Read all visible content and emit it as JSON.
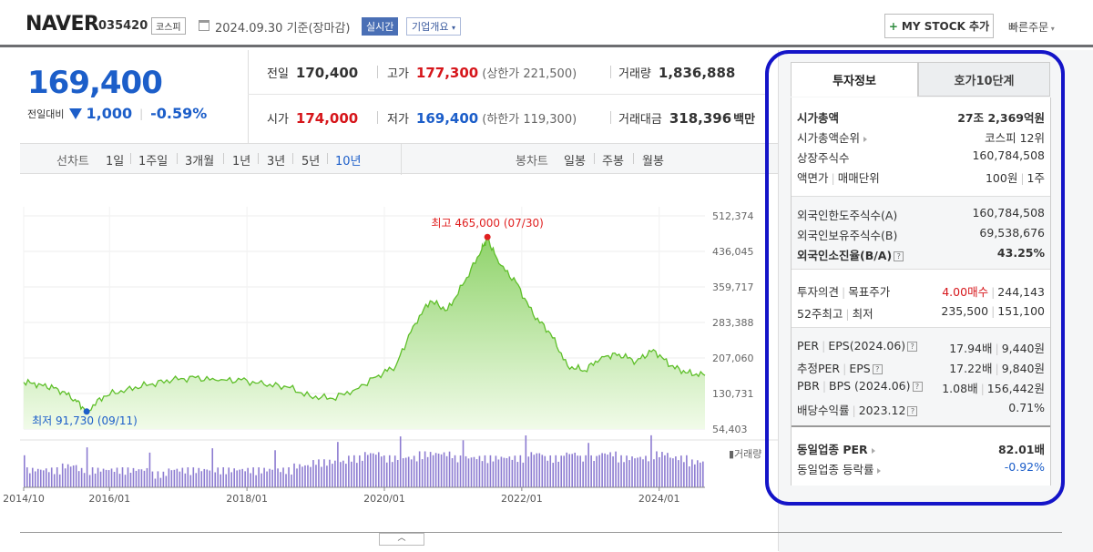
{
  "header": {
    "name": "NAVER",
    "code": "035420",
    "market": "코스피",
    "date": "2024.09.30 기준(장마감)",
    "realtime": "실시간",
    "company_overview": "기업개요",
    "mystock": "MY STOCK 추가",
    "quick_order": "빠른주문"
  },
  "price": {
    "current": "169,400",
    "diff_label": "전일대비",
    "diff_value": "1,000",
    "diff_pct": "-0.59%"
  },
  "quote": {
    "prev_label": "전일",
    "prev": "170,400",
    "high_label": "고가",
    "high": "177,300",
    "high_sub": "(상한가 221,500)",
    "volume_label": "거래량",
    "volume": "1,836,888",
    "open_label": "시가",
    "open": "174,000",
    "low_label": "저가",
    "low": "169,400",
    "low_sub": "(하한가 119,300)",
    "amount_label": "거래대금",
    "amount": "318,396",
    "amount_unit": "백만"
  },
  "periods": {
    "line_label": "선차트",
    "line_items": [
      "1일",
      "1주일",
      "3개월",
      "1년",
      "3년",
      "5년",
      "10년"
    ],
    "selected": "10년",
    "candle_label": "봉차트",
    "candle_items": [
      "일봉",
      "주봉",
      "월봉"
    ]
  },
  "chart_data": {
    "type": "area",
    "title": "",
    "x_ticks": [
      "2014/10",
      "2016/01",
      "2018/01",
      "2020/01",
      "2022/01",
      "2024/01"
    ],
    "y_ticks": [
      "512,374",
      "436,045",
      "359,717",
      "283,388",
      "207,060",
      "130,731",
      "54,403"
    ],
    "ylim": [
      54403,
      512374
    ],
    "max_label": "최고 465,000 (07/30)",
    "min_label": "최저 91,730 (09/11)",
    "volume_label": "거래량",
    "series": [
      {
        "x": [
          "2014/10",
          "2015/01",
          "2015/04",
          "2015/07",
          "2015/09",
          "2015/12",
          "2016/04",
          "2016/08",
          "2016/12",
          "2017/04",
          "2017/08",
          "2017/12",
          "2018/04",
          "2018/08",
          "2018/12",
          "2019/04",
          "2019/08",
          "2019/12",
          "2020/03",
          "2020/06",
          "2020/09",
          "2020/12",
          "2021/03",
          "2021/06",
          "2021/07",
          "2021/09",
          "2021/12",
          "2022/03",
          "2022/06",
          "2022/09",
          "2022/12",
          "2023/03",
          "2023/06",
          "2023/09",
          "2023/12",
          "2024/03",
          "2024/06",
          "2024/09"
        ],
        "values": [
          155000,
          150000,
          140000,
          118000,
          92000,
          125000,
          140000,
          150000,
          160000,
          165000,
          158000,
          160000,
          150000,
          145000,
          125000,
          120000,
          140000,
          170000,
          190000,
          275000,
          330000,
          310000,
          370000,
          440000,
          465000,
          410000,
          370000,
          300000,
          260000,
          190000,
          180000,
          210000,
          215000,
          200000,
          225000,
          190000,
          175000,
          169400
        ]
      }
    ],
    "volume": [
      3,
      3,
      4,
      3,
      3,
      3,
      3,
      2,
      3,
      3,
      3,
      3,
      3,
      3,
      3,
      4,
      5,
      5,
      6,
      7,
      6,
      6,
      7,
      7,
      6,
      6,
      6,
      6,
      7,
      6,
      7,
      6,
      7,
      6,
      6,
      7,
      6,
      5
    ]
  },
  "tabs": [
    "투자정보",
    "호가10단계"
  ],
  "invest": {
    "g1": [
      {
        "label": "시가총액",
        "value": "27조 2,369억원",
        "bold": true
      },
      {
        "label": "시가총액순위",
        "value": "코스피 12위"
      },
      {
        "label": "상장주식수",
        "value": "160,784,508"
      },
      {
        "label": "액면가",
        "label2": "매매단위",
        "value": "100원",
        "value2": "1주"
      }
    ],
    "g2": [
      {
        "label": "외국인한도주식수(A)",
        "value": "160,784,508"
      },
      {
        "label": "외국인보유주식수(B)",
        "value": "69,538,676"
      },
      {
        "label": "외국인소진율(B/A)",
        "value": "43.25%",
        "bold": true
      }
    ],
    "g3": [
      {
        "label": "투자의견",
        "label2": "목표주가",
        "value": "4.00매수",
        "value2": "244,143"
      },
      {
        "label": "52주최고",
        "label2": "최저",
        "value": "235,500",
        "value2": "151,100"
      }
    ],
    "g4": [
      {
        "label": "PER",
        "label2": "EPS(2024.06)",
        "value": "17.94배",
        "value2": "9,440원"
      },
      {
        "label": "추정PER",
        "label2": "EPS",
        "value": "17.22배",
        "value2": "9,840원"
      },
      {
        "label": "PBR",
        "label2": "BPS (2024.06)",
        "value": "1.08배",
        "value2": "156,442원"
      },
      {
        "label": "배당수익률",
        "label2": "2023.12",
        "value": "0.71%"
      }
    ],
    "g5": [
      {
        "label": "동일업종 PER",
        "value": "82.01배",
        "bold": true
      },
      {
        "label": "동일업종 등락률",
        "value": "-0.92%"
      }
    ]
  },
  "colors": {
    "accent": "#1c5ec9",
    "up": "#d6161b",
    "highlight": "#1414c8"
  }
}
